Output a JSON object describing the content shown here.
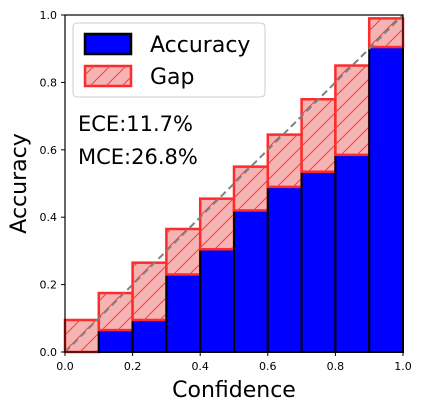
{
  "chart_data": {
    "type": "bar",
    "xlabel": "Confidence",
    "ylabel": "Accuracy",
    "xlim": [
      0.0,
      1.0
    ],
    "ylim": [
      0.0,
      1.0
    ],
    "xticks": [
      "0.0",
      "0.2",
      "0.4",
      "0.6",
      "0.8",
      "1.0"
    ],
    "yticks": [
      "0.0",
      "0.2",
      "0.4",
      "0.6",
      "0.8",
      "1.0"
    ],
    "bin_edges": [
      0.0,
      0.1,
      0.2,
      0.3,
      0.4,
      0.5,
      0.6,
      0.7,
      0.8,
      0.9,
      1.0
    ],
    "series": [
      {
        "name": "Accuracy",
        "values": [
          0.0,
          0.065,
          0.095,
          0.23,
          0.305,
          0.42,
          0.49,
          0.535,
          0.585,
          0.905
        ]
      },
      {
        "name": "Gap",
        "values": [
          0.095,
          0.175,
          0.265,
          0.365,
          0.455,
          0.55,
          0.645,
          0.75,
          0.85,
          0.99
        ]
      }
    ],
    "legend_position": "top-left",
    "grid": false,
    "colors": {
      "accuracy": "#0000ff",
      "gap_fill": "#f4b4b4",
      "gap_edge": "#ff2a2a",
      "diagonal": "#808080"
    },
    "annotations": [
      "ECE:11.7%",
      "MCE:26.8%"
    ]
  }
}
